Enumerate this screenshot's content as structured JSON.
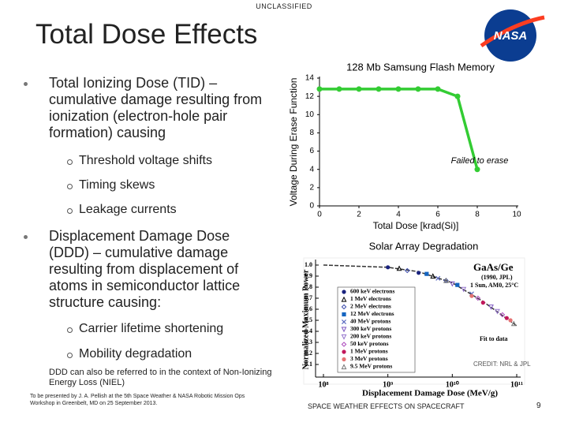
{
  "header": {
    "classification": "UNCLASSIFIED",
    "title": "Total Dose Effects",
    "logo": "NASA"
  },
  "bullets": [
    {
      "text": "Total Ionizing Dose (TID) – cumulative damage resulting from ionization (electron-hole pair formation) causing",
      "items": [
        "Threshold voltage shifts",
        "Timing skews",
        "Leakage currents"
      ]
    },
    {
      "text": "Displacement Damage Dose (DDD) – cumulative damage resulting from displacement of atoms in semiconductor lattice structure causing:",
      "items": [
        "Carrier lifetime shortening",
        "Mobility degradation"
      ]
    }
  ],
  "note": "DDD can also be referred to in the context of Non-Ionizing Energy Loss (NIEL)",
  "footer": {
    "presenter": "To be presented by J. A. Pellish at the 5th Space Weather & NASA Robotic Mission Ops Workshop in Greenbelt, MD on 25 September 2013.",
    "center": "SPACE WEATHER EFFECTS ON SPACECRAFT",
    "page": "9"
  },
  "chart_data": [
    {
      "type": "line",
      "title": "128 Mb Samsung Flash Memory",
      "x_label": "Total Dose [krad(Si)]",
      "y_label": "Voltage During Erase Function",
      "x": [
        0,
        1,
        2,
        3,
        4,
        5,
        6,
        7,
        8
      ],
      "series": [
        {
          "color": "#33cc33",
          "values": [
            12.8,
            12.8,
            12.8,
            12.8,
            12.8,
            12.8,
            12.8,
            12,
            4
          ]
        }
      ],
      "annotation": "Failed to erase",
      "xlim": [
        0,
        10
      ],
      "xticks": [
        0,
        2,
        4,
        6,
        8,
        10
      ],
      "ylim": [
        0,
        14
      ],
      "yticks": [
        0,
        2,
        4,
        6,
        8,
        10,
        12,
        14
      ]
    },
    {
      "type": "scatter",
      "title": "Solar Array Degradation",
      "x_label": "Displacement Damage Dose (MeV/g)",
      "y_label": "Normalized Maximum Power",
      "log_x": true,
      "xlim": [
        100000000,
        100000000000
      ],
      "xticks": [
        {
          "value": 100000000,
          "label": "10⁸"
        },
        {
          "value": 1000000000,
          "label": "10⁹"
        },
        {
          "value": 10000000000,
          "label": "10¹⁰"
        },
        {
          "value": 100000000000,
          "label": "10¹¹"
        }
      ],
      "ylim": [
        0,
        1.05
      ],
      "yticks": [
        0.1,
        0.2,
        0.3,
        0.4,
        0.5,
        0.6,
        0.7,
        0.8,
        0.9,
        {
          "value": 1,
          "label": "1.0"
        }
      ],
      "annotations": [
        "GaAs/Ge",
        "(1990, JPL)",
        "1 Sun, AM0, 25°C",
        "Fit to data",
        "CREDIT: NRL & JPL"
      ],
      "fit": {
        "x": [
          100000000,
          1000000000,
          3000000000,
          10000000000,
          30000000000,
          100000000000
        ],
        "y": [
          1,
          0.98,
          0.94,
          0.84,
          0.67,
          0.45
        ],
        "color": "#333333"
      },
      "series": [
        {
          "name": "600 keV electrons",
          "color": "#1a237e",
          "marker": "circle",
          "x": [
            1000000000,
            3000000000
          ],
          "y": [
            0.98,
            0.93
          ]
        },
        {
          "name": "1 MeV electrons",
          "color": "#000000",
          "marker": "triangle",
          "x": [
            1500000000,
            5000000000
          ],
          "y": [
            0.97,
            0.9
          ]
        },
        {
          "name": "2 MeV electrons",
          "color": "#3949ab",
          "marker": "diamond",
          "x": [
            2000000000,
            8000000000
          ],
          "y": [
            0.95,
            0.86
          ]
        },
        {
          "name": "12 MeV electrons",
          "color": "#1565c0",
          "marker": "square",
          "x": [
            4000000000,
            12000000000
          ],
          "y": [
            0.92,
            0.82
          ]
        },
        {
          "name": "40 MeV protons",
          "color": "#5c6bc0",
          "marker": "cross",
          "x": [
            6000000000,
            20000000000
          ],
          "y": [
            0.88,
            0.74
          ]
        },
        {
          "name": "300 keV protons",
          "color": "#7e57c2",
          "marker": "triangle-down",
          "x": [
            10000000000,
            40000000000
          ],
          "y": [
            0.83,
            0.62
          ]
        },
        {
          "name": "200 keV protons",
          "color": "#9575cd",
          "marker": "triangle-down",
          "x": [
            15000000000,
            50000000000
          ],
          "y": [
            0.78,
            0.58
          ]
        },
        {
          "name": "50 keV protons",
          "color": "#ab47bc",
          "marker": "diamond",
          "x": [
            25000000000,
            60000000000
          ],
          "y": [
            0.7,
            0.55
          ]
        },
        {
          "name": "1 MeV protons",
          "color": "#c2185b",
          "marker": "circle",
          "x": [
            30000000000,
            70000000000
          ],
          "y": [
            0.66,
            0.52
          ]
        },
        {
          "name": "3 MeV protons",
          "color": "#e57373",
          "marker": "circle",
          "x": [
            20000000000,
            80000000000
          ],
          "y": [
            0.72,
            0.5
          ]
        },
        {
          "name": "9.5 MeV protons",
          "color": "#777777",
          "marker": "triangle",
          "x": [
            8000000000,
            90000000000
          ],
          "y": [
            0.86,
            0.47
          ]
        }
      ]
    }
  ]
}
